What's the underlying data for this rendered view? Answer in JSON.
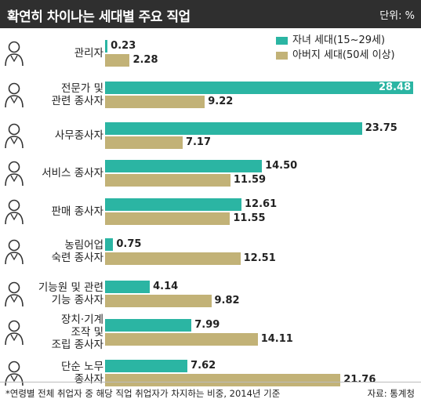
{
  "header": {
    "title": "확연히 차이나는 세대별 주요 직업",
    "unit": "단위: %"
  },
  "footer": {
    "note": "*연령별 전체 취업자 중 해당 직업 취업자가 차지하는 비중, 2014년 기준",
    "source": "자료: 통계청"
  },
  "colors": {
    "youth": "#2bb5a3",
    "father": "#c2b277",
    "title_bg": "#2f2f2f"
  },
  "chart_data": {
    "type": "bar",
    "orientation": "horizontal",
    "title": "확연히 차이나는 세대별 주요 직업",
    "unit": "단위: %",
    "categories": [
      "관리자",
      "전문가 및\n관련 종사자",
      "사무종사자",
      "서비스 종사자",
      "판매 종사자",
      "농림어업\n숙련 종사자",
      "기능원 및 관련\n기능 종사자",
      "장치·기계\n조작 및\n조립 종사자",
      "단순 노무\n종사자"
    ],
    "icons": [
      "manager-icon",
      "professional-icon",
      "office-worker-icon",
      "service-worker-icon",
      "sales-worker-icon",
      "farmer-icon",
      "craftsman-icon",
      "machine-operator-icon",
      "laborer-icon"
    ],
    "series": [
      {
        "name": "자녀 세대(15~29세)",
        "values": [
          0.23,
          28.48,
          23.75,
          14.5,
          12.61,
          0.75,
          4.14,
          7.99,
          7.62
        ]
      },
      {
        "name": "아버지 세대(50세 이상)",
        "values": [
          2.28,
          9.22,
          7.17,
          11.59,
          11.55,
          12.51,
          9.82,
          14.11,
          21.76
        ]
      }
    ],
    "value_labels": [
      [
        "0.23",
        "28.48",
        "23.75",
        "14.50",
        "12.61",
        "0.75",
        "4.14",
        "7.99",
        "7.62"
      ],
      [
        "2.28",
        "9.22",
        "7.17",
        "11.59",
        "11.55",
        "12.51",
        "9.82",
        "14.11",
        "21.76"
      ]
    ],
    "xlim": [
      0,
      28.48
    ],
    "legend": "top-right",
    "grid": false
  }
}
